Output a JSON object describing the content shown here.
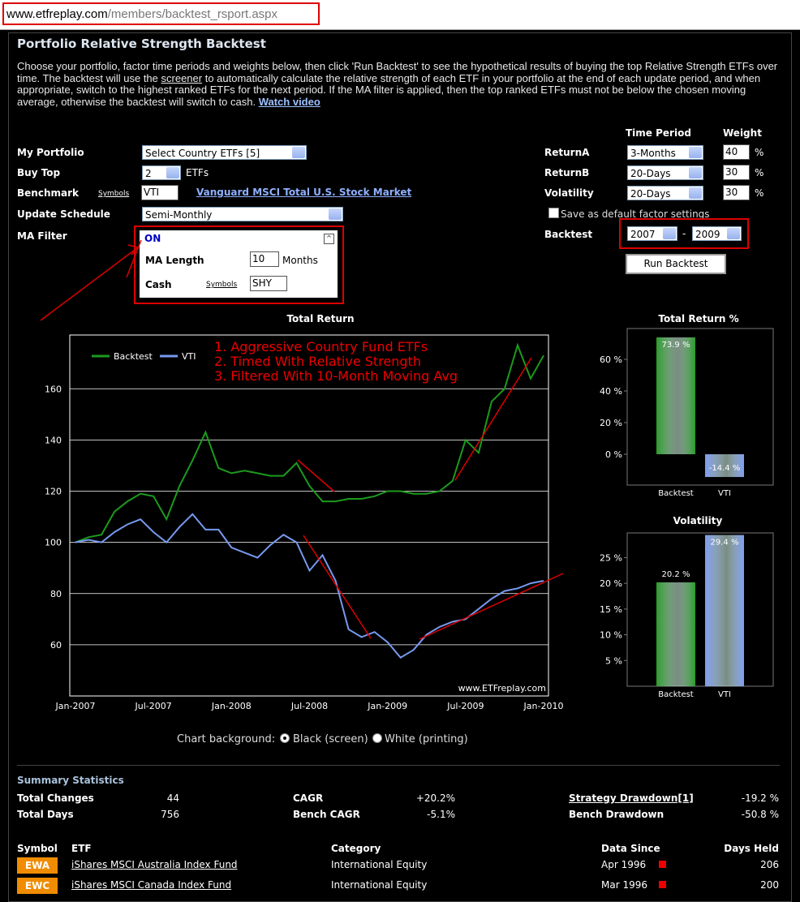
{
  "browser": {
    "url_host": "www.etfreplay.com",
    "url_path": "/members/backtest_rsport.aspx"
  },
  "page_title": "Portfolio Relative Strength Backtest",
  "intro": {
    "text1": "Choose your portfolio, factor time periods and weights below, then click 'Run Backtest' to see the hypothetical results of buying the top Relative Strength ETFs over time. The backtest will use the ",
    "link1": "screener",
    "text2": " to automatically calculate the relative strength of each ETF in your portfolio at the end of each update period, and when appropriate, switch to the highest ranked ETFs for the next period. If the MA filter is applied, then the top ranked ETFs must not be below the chosen moving average, otherwise the backtest will switch to cash. ",
    "link2": "Watch video"
  },
  "form": {
    "portfolio_label": "My Portfolio",
    "portfolio": "Select Country ETFs [5]",
    "buy_top_label": "Buy Top",
    "buy_top": "2",
    "buy_top_unit": "ETFs",
    "benchmark_label": "Benchmark",
    "symbols": "Symbols",
    "benchmark": "VTI",
    "benchmark_name": "Vanguard MSCI Total U.S. Stock Market",
    "update_label": "Update Schedule",
    "update": "Semi-Monthly",
    "ma_label": "MA Filter",
    "ma_state": "ON",
    "ma_length_label": "MA Length",
    "ma_length": "10",
    "ma_length_unit": "Months",
    "cash_label": "Cash",
    "cash": "SHY",
    "time_period_header": "Time Period",
    "weight_header": "Weight",
    "factors": [
      {
        "label": "ReturnA",
        "period": "3-Months",
        "weight": "40",
        "unit": "%"
      },
      {
        "label": "ReturnB",
        "period": "20-Days",
        "weight": "30",
        "unit": "%"
      },
      {
        "label": "Volatility",
        "period": "20-Days",
        "weight": "30",
        "unit": "%"
      }
    ],
    "save_default": "Save as default factor settings",
    "backtest_label": "Backtest",
    "backtest_from": "2007",
    "backtest_sep": "-",
    "backtest_to": "2009",
    "run_button": "Run Backtest"
  },
  "chart_data": [
    {
      "type": "line",
      "title": "Total Return",
      "categories": [
        "Jan-2007",
        null,
        null,
        null,
        null,
        null,
        "Jul-2007",
        null,
        null,
        null,
        null,
        null,
        "Jan-2008",
        null,
        null,
        null,
        null,
        null,
        "Jul-2008",
        null,
        null,
        null,
        null,
        null,
        "Jan-2009",
        null,
        null,
        null,
        null,
        null,
        "Jul-2009",
        null,
        null,
        null,
        null,
        null,
        "Jan-2010"
      ],
      "series": [
        {
          "name": "Backtest",
          "color": "#1c9a1c",
          "values": [
            100,
            102,
            103,
            112,
            116,
            119,
            118,
            109,
            122,
            132,
            143,
            129,
            127,
            128,
            127,
            126,
            126,
            131,
            122,
            116,
            116,
            117,
            117,
            118,
            120,
            120,
            119,
            119,
            120,
            124,
            140,
            135,
            155,
            160,
            177,
            164,
            173
          ]
        },
        {
          "name": "VTI",
          "color": "#7799ee",
          "values": [
            100,
            101,
            100,
            104,
            107,
            109,
            104,
            100,
            106,
            111,
            105,
            105,
            98,
            96,
            94,
            99,
            103,
            100,
            89,
            95,
            85,
            66,
            63,
            65,
            61,
            55,
            58,
            64,
            67,
            69,
            70,
            74,
            78,
            81,
            82,
            84,
            85
          ]
        }
      ],
      "ylim": [
        40,
        181
      ],
      "yticks": [
        60,
        80,
        100,
        120,
        140,
        160
      ],
      "grid": true,
      "legend": "upper left",
      "annotations": [
        "1. Aggressive Country Fund ETFs",
        "2. Timed With Relative Strength",
        "3. Filtered With 10-Month Moving Avg"
      ],
      "watermark": "www.ETFreplay.com"
    },
    {
      "type": "bar",
      "title": "Total Return %",
      "categories": [
        "Backtest",
        "VTI"
      ],
      "values": [
        73.9,
        -14.4
      ],
      "value_labels": [
        "73.9 %",
        "-14.4 %"
      ],
      "colors": [
        "#2a9a2a",
        "#7f9cf0"
      ],
      "ylim": [
        -19.5,
        79.5
      ],
      "yticks": [
        {
          "value": 0,
          "label": "0 %"
        },
        {
          "value": 20,
          "label": "20 %"
        },
        {
          "value": 40,
          "label": "40 %"
        },
        {
          "value": 60,
          "label": "60 %"
        }
      ]
    },
    {
      "type": "bar",
      "title": "Volatility",
      "categories": [
        "Backtest",
        "VTI"
      ],
      "values": [
        20.2,
        29.4
      ],
      "value_labels": [
        "20.2 %",
        "29.4 %"
      ],
      "colors": [
        "#2a9a2a",
        "#7f9cf0"
      ],
      "ylim": [
        0,
        29.8
      ],
      "yticks": [
        {
          "value": 5,
          "label": "5 %"
        },
        {
          "value": 10,
          "label": "10 %"
        },
        {
          "value": 15,
          "label": "15 %"
        },
        {
          "value": 20,
          "label": "20 %"
        },
        {
          "value": 25,
          "label": "25 %"
        }
      ]
    }
  ],
  "chart_background": {
    "label": "Chart background:",
    "options": [
      "Black (screen)",
      "White (printing)"
    ]
  },
  "summary": {
    "title": "Summary Statistics",
    "items": [
      {
        "label": "Total Changes",
        "value": "44"
      },
      {
        "label": "Total Days",
        "value": "756"
      },
      {
        "label": "CAGR",
        "value": "+20.2%"
      },
      {
        "label": "Bench CAGR",
        "value": "-5.1%"
      },
      {
        "label": "Strategy Drawdown[1]",
        "value": "-19.2 %"
      },
      {
        "label": "Bench Drawdown",
        "value": "-50.8 %"
      }
    ]
  },
  "table": {
    "headers": [
      "Symbol",
      "ETF",
      "Category",
      "Data Since",
      "Days Held"
    ],
    "rows": [
      [
        "EWA",
        "iShares MSCI Australia Index Fund",
        "International Equity",
        "Apr 1996",
        "206"
      ],
      [
        "EWC",
        "iShares MSCI Canada Index Fund",
        "International Equity",
        "Mar 1996",
        "200"
      ]
    ]
  }
}
